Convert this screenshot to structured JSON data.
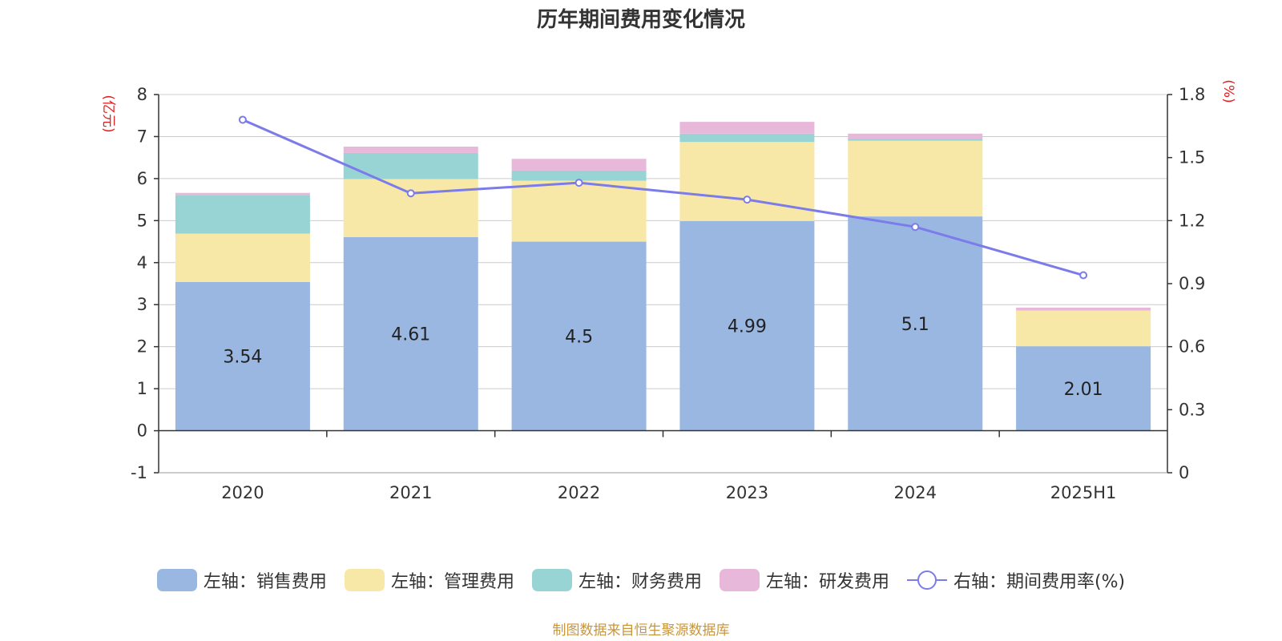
{
  "chart_data": {
    "type": "bar",
    "title": "历年期间费用变化情况",
    "categories": [
      "2020",
      "2021",
      "2022",
      "2023",
      "2024",
      "2025H1"
    ],
    "left_axis": {
      "unit_label": "(亿元)",
      "min": -1,
      "max": 8,
      "ticks": [
        "-1",
        "0",
        "1",
        "2",
        "3",
        "4",
        "5",
        "6",
        "7",
        "8"
      ]
    },
    "right_axis": {
      "unit_label": "(%)",
      "min": 0,
      "max": 1.8,
      "ticks": [
        "0",
        "0.3",
        "0.6",
        "0.9",
        "1.2",
        "1.5",
        "1.8"
      ]
    },
    "series": [
      {
        "name": "左轴：销售费用",
        "color": "#9ab7e2",
        "values": [
          3.54,
          4.61,
          4.5,
          4.99,
          5.1,
          2.01
        ],
        "labels": [
          "3.54",
          "4.61",
          "4.5",
          "4.99",
          "5.1",
          "2.01"
        ]
      },
      {
        "name": "左轴：管理费用",
        "color": "#f8e8a8",
        "values": [
          1.15,
          1.38,
          1.45,
          1.88,
          1.8,
          0.85
        ]
      },
      {
        "name": "左轴：财务费用",
        "color": "#98d4d4",
        "values": [
          0.92,
          0.62,
          0.24,
          0.2,
          0.05,
          0.0
        ]
      },
      {
        "name": "左轴：研发费用",
        "color": "#e8b8da",
        "values": [
          0.05,
          0.15,
          0.28,
          0.28,
          0.12,
          0.07
        ]
      },
      {
        "name": "右轴：期间费用率(%)",
        "type": "line",
        "axis": "right",
        "color": "#7b7bea",
        "values": [
          1.68,
          1.33,
          1.38,
          1.3,
          1.17,
          0.94
        ]
      }
    ],
    "grid": true,
    "legend_position": "bottom"
  },
  "source_note": "制图数据来自恒生聚源数据库"
}
